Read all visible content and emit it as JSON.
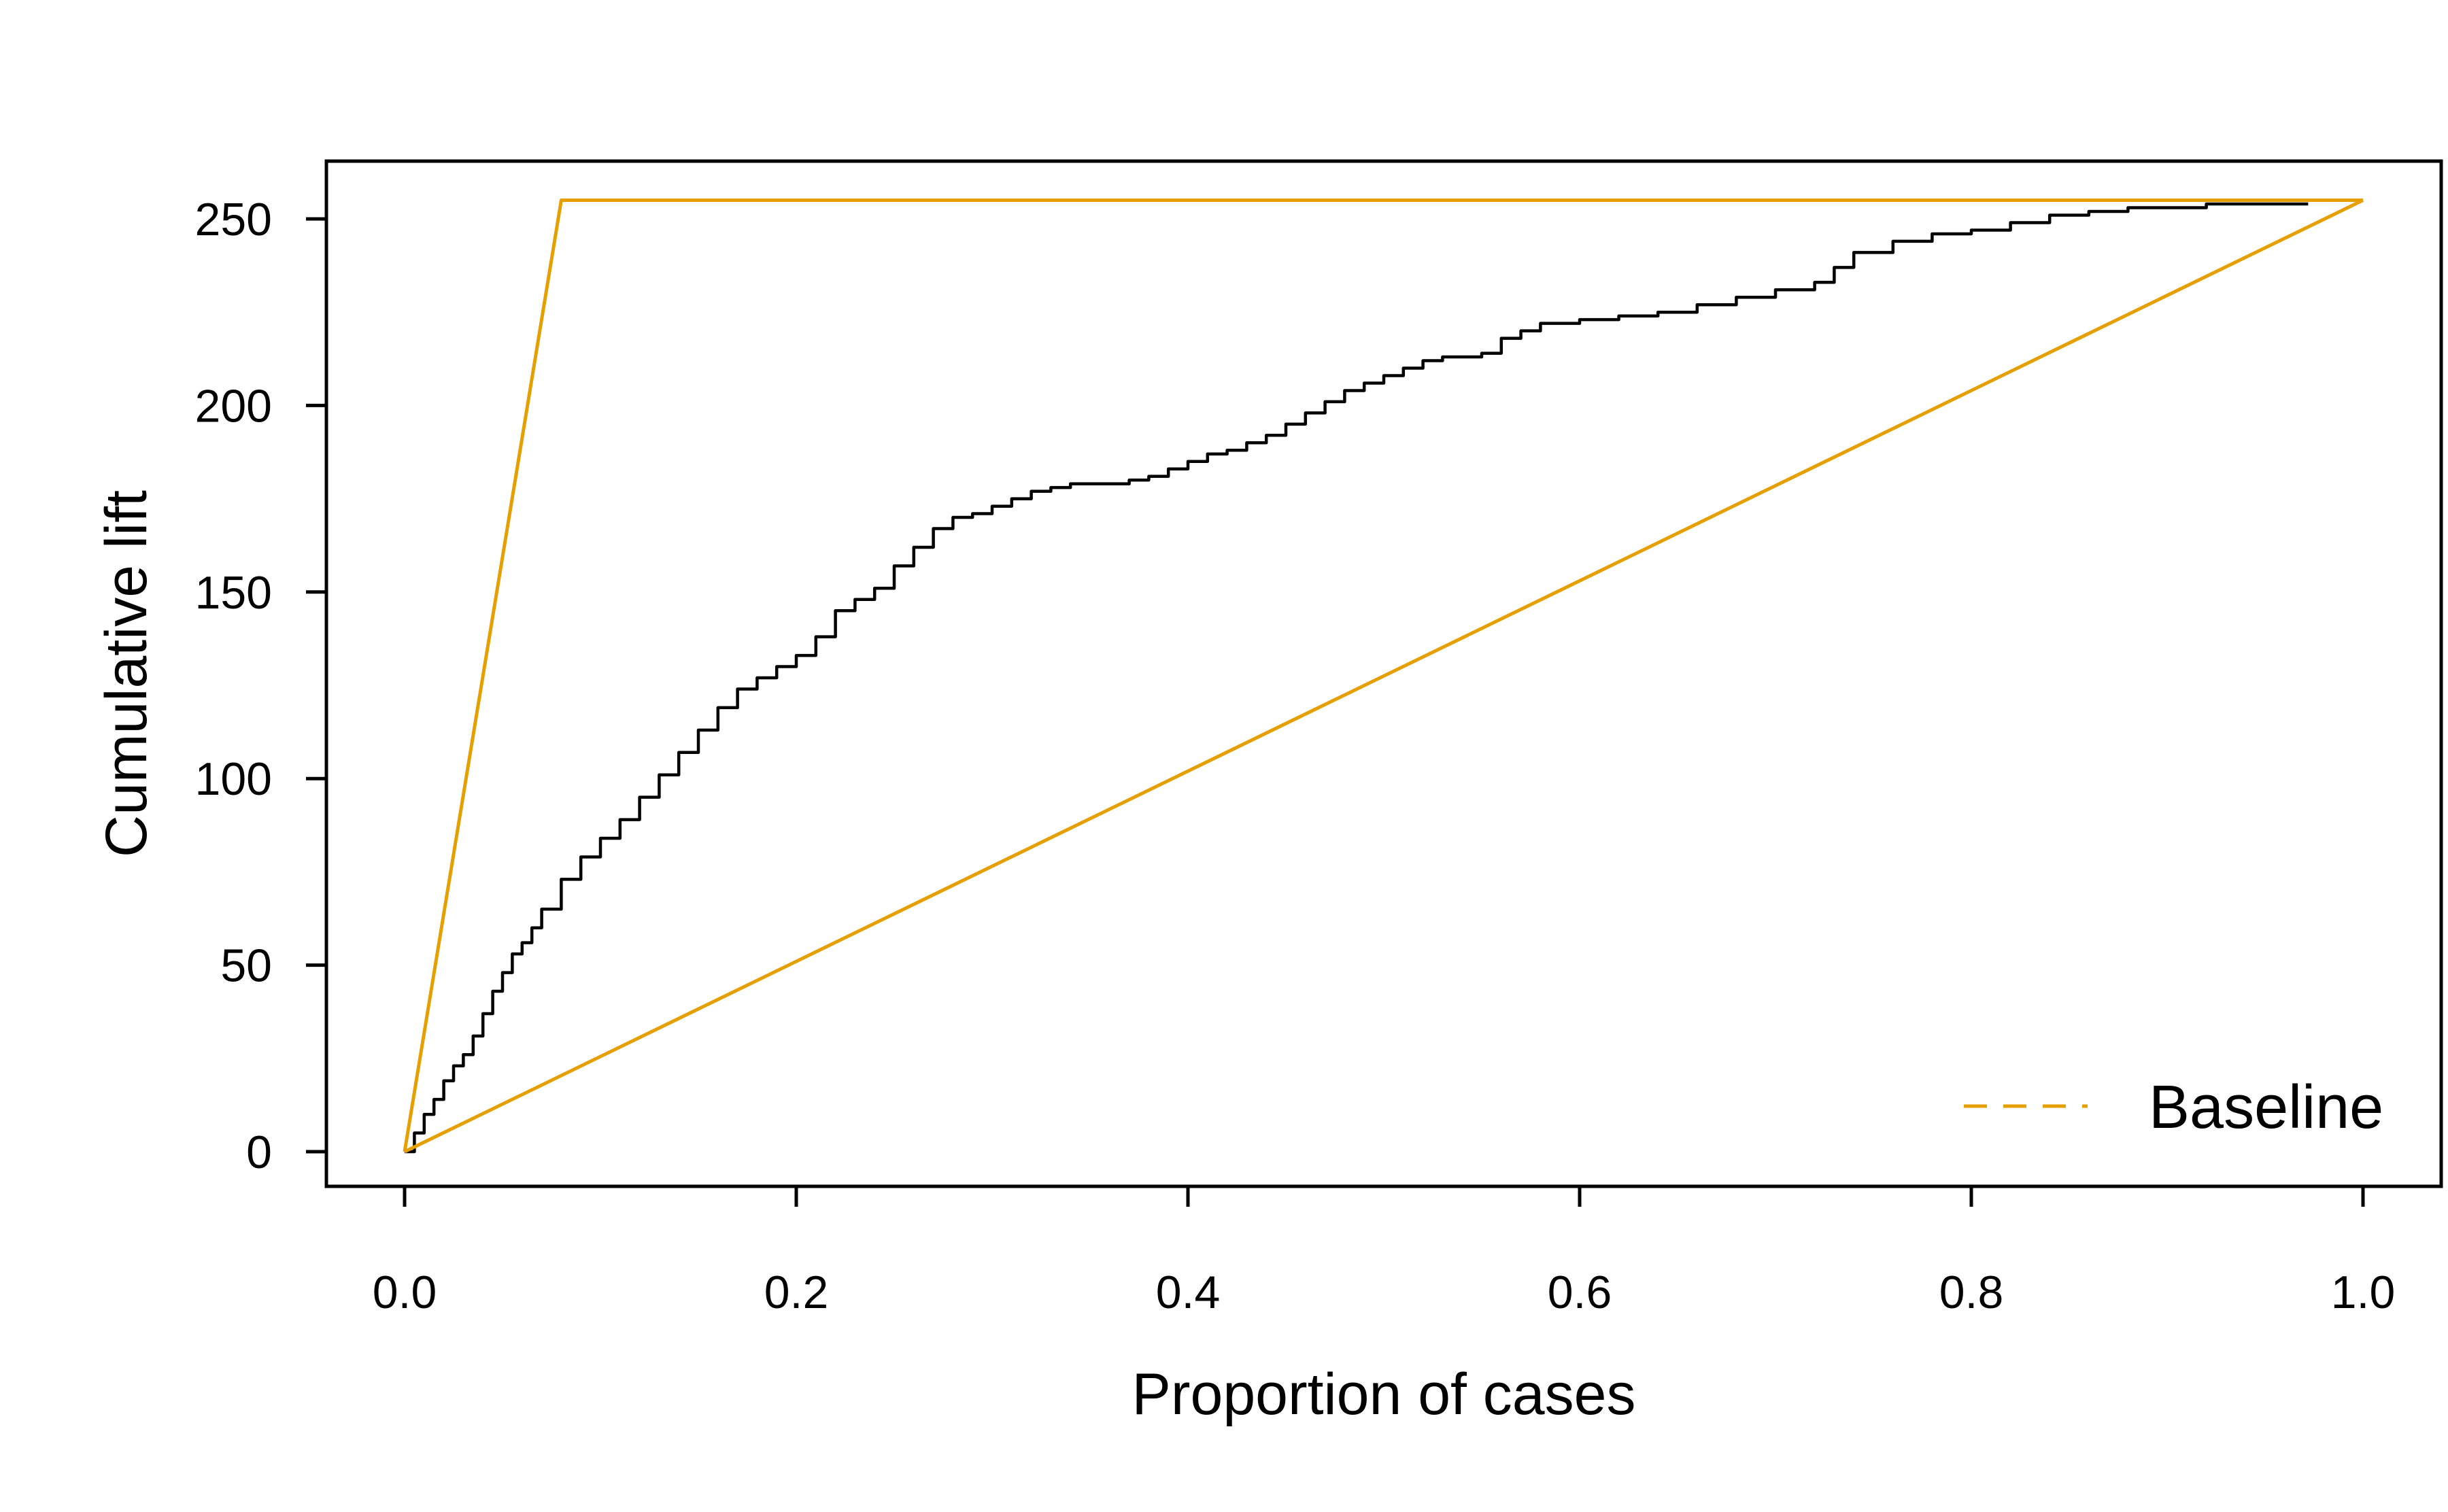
{
  "chart_data": {
    "type": "line",
    "title": "",
    "xlabel": "Proportion of cases",
    "ylabel": "Cumulative lift",
    "xlim": [
      -0.04,
      1.04
    ],
    "ylim": [
      -9,
      265
    ],
    "x_ticks": [
      0.0,
      0.2,
      0.4,
      0.6,
      0.8,
      1.0
    ],
    "x_tick_labels": [
      "0.0",
      "0.2",
      "0.4",
      "0.6",
      "0.8",
      "1.0"
    ],
    "y_ticks": [
      0,
      50,
      100,
      150,
      200,
      250
    ],
    "y_tick_labels": [
      "0",
      "50",
      "100",
      "150",
      "200",
      "250"
    ],
    "grid": false,
    "legend": {
      "position": "bottom-right",
      "entries": [
        {
          "label": "Baseline",
          "style": "dashed",
          "color": "#E69F00"
        }
      ]
    },
    "series": [
      {
        "style": "solid-step",
        "color": "#000000",
        "x": [
          0.0,
          0.005,
          0.01,
          0.015,
          0.02,
          0.025,
          0.03,
          0.035,
          0.04,
          0.045,
          0.05,
          0.055,
          0.06,
          0.065,
          0.07,
          0.08,
          0.09,
          0.1,
          0.11,
          0.12,
          0.13,
          0.14,
          0.15,
          0.16,
          0.17,
          0.18,
          0.19,
          0.2,
          0.21,
          0.22,
          0.23,
          0.24,
          0.25,
          0.26,
          0.27,
          0.28,
          0.29,
          0.3,
          0.31,
          0.32,
          0.33,
          0.34,
          0.35,
          0.37,
          0.38,
          0.39,
          0.4,
          0.41,
          0.42,
          0.43,
          0.44,
          0.45,
          0.46,
          0.47,
          0.48,
          0.49,
          0.5,
          0.51,
          0.52,
          0.53,
          0.55,
          0.56,
          0.57,
          0.58,
          0.6,
          0.62,
          0.64,
          0.66,
          0.68,
          0.7,
          0.72,
          0.73,
          0.74,
          0.76,
          0.78,
          0.8,
          0.82,
          0.84,
          0.86,
          0.88,
          0.9,
          0.92,
          0.95,
          0.972
        ],
        "y": [
          0,
          5,
          10,
          14,
          19,
          23,
          26,
          31,
          37,
          43,
          48,
          53,
          56,
          60,
          65,
          73,
          79,
          84,
          89,
          95,
          101,
          107,
          113,
          119,
          124,
          127,
          130,
          133,
          138,
          145,
          148,
          151,
          157,
          162,
          167,
          170,
          171,
          173,
          175,
          177,
          178,
          179,
          179,
          180,
          181,
          183,
          185,
          187,
          188,
          190,
          192,
          195,
          198,
          201,
          204,
          206,
          208,
          210,
          212,
          213,
          214,
          218,
          220,
          222,
          223,
          224,
          225,
          227,
          229,
          231,
          233,
          237,
          241,
          244,
          246,
          247,
          249,
          251,
          252,
          253,
          253,
          254,
          254,
          254
        ]
      },
      {
        "style": "solid",
        "color": "#E69F00",
        "x": [
          0.0,
          0.08,
          1.0
        ],
        "y": [
          0,
          255,
          255
        ]
      },
      {
        "style": "solid",
        "color": "#E69F00",
        "x": [
          0.0,
          1.0
        ],
        "y": [
          0,
          255
        ]
      }
    ]
  }
}
